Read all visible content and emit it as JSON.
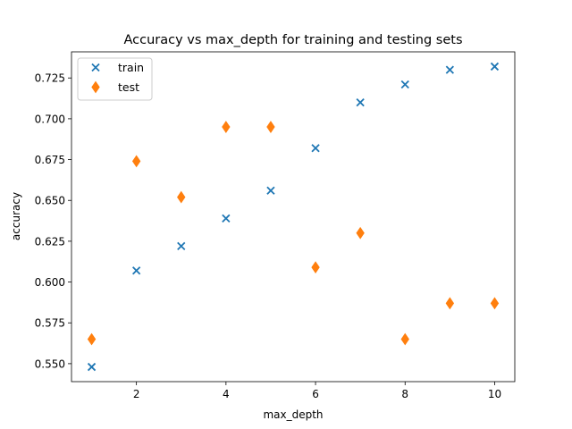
{
  "chart_data": {
    "type": "scatter",
    "title": "Accuracy vs max_depth for training and testing sets",
    "xlabel": "max_depth",
    "ylabel": "accuracy",
    "xlim": [
      0.55,
      10.45
    ],
    "ylim": [
      0.539,
      0.741
    ],
    "xticks": [
      2,
      4,
      6,
      8,
      10
    ],
    "yticks": [
      0.55,
      0.575,
      0.6,
      0.625,
      0.65,
      0.675,
      0.7,
      0.725
    ],
    "ytick_labels": [
      "0.550",
      "0.575",
      "0.600",
      "0.625",
      "0.650",
      "0.675",
      "0.700",
      "0.725"
    ],
    "grid": false,
    "legend_position": "upper-left",
    "series": [
      {
        "name": "train",
        "marker": "x",
        "color": "#1f77b4",
        "x": [
          1,
          2,
          3,
          4,
          5,
          6,
          7,
          8,
          9,
          10
        ],
        "y": [
          0.548,
          0.607,
          0.622,
          0.639,
          0.656,
          0.682,
          0.71,
          0.721,
          0.73,
          0.732
        ]
      },
      {
        "name": "test",
        "marker": "diamond",
        "color": "#ff7f0e",
        "x": [
          1,
          2,
          3,
          4,
          5,
          6,
          7,
          8,
          9,
          10
        ],
        "y": [
          0.565,
          0.674,
          0.652,
          0.695,
          0.695,
          0.609,
          0.63,
          0.565,
          0.587,
          0.587
        ]
      }
    ]
  }
}
